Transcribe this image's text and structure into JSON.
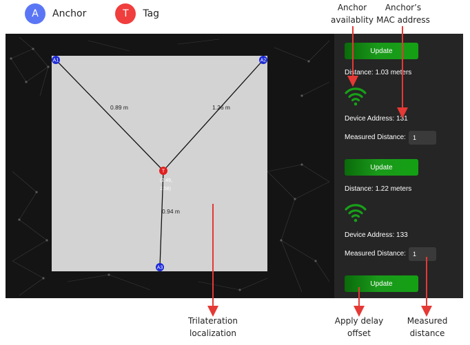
{
  "legend": {
    "anchor": {
      "symbol": "A",
      "label": "Anchor",
      "color": "#5b76f5"
    },
    "tag": {
      "symbol": "T",
      "label": "Tag",
      "color": "#f03d3d"
    }
  },
  "map": {
    "anchors": [
      {
        "id": "A1"
      },
      {
        "id": "A2"
      },
      {
        "id": "A3"
      }
    ],
    "tag": {
      "id": "T",
      "x_coord": "(2.49,",
      "y_coord": "2.58)"
    },
    "distances": [
      "0.89 m",
      "1.26 m",
      "0.94 m"
    ]
  },
  "panel": {
    "update_label": "Update",
    "distance_label": "Distance:",
    "device_address_label": "Device Address:",
    "measured_distance_label": "Measured Distance:",
    "devices": [
      {
        "distance": "1.03 meters",
        "address": "131",
        "measured": "1"
      },
      {
        "distance": "1.22 meters",
        "address": "133",
        "measured": "1"
      }
    ]
  },
  "annotations": {
    "availability": [
      "Anchor",
      "availablity"
    ],
    "mac": [
      "Anchor’s",
      "MAC address"
    ],
    "trilateration": [
      "Trilateration",
      "localization"
    ],
    "delay": [
      "Apply delay",
      "offset"
    ],
    "measured": [
      "Measured",
      "distance"
    ]
  },
  "colors": {
    "wifi": "#18a018",
    "arrow": "#e53935"
  }
}
